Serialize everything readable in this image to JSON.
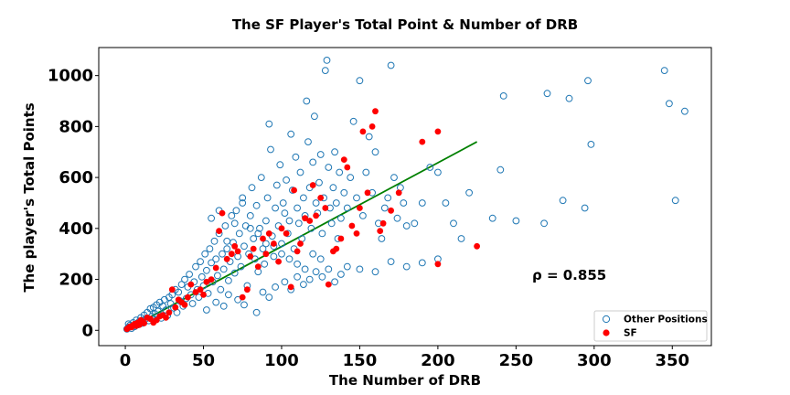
{
  "chart_data": {
    "type": "scatter",
    "title": "The SF Player's Total Point & Number of DRB",
    "xlabel": "The Number of DRB",
    "ylabel": "The player's Total Points",
    "xlim": [
      -17,
      375
    ],
    "ylim": [
      -60,
      1110
    ],
    "xticks": [
      0,
      50,
      100,
      150,
      200,
      250,
      300,
      350
    ],
    "yticks": [
      0,
      200,
      400,
      600,
      800,
      1000
    ],
    "grid": false,
    "legend_position": "lower-right",
    "annotation": "ρ = 0.855",
    "colors": {
      "other": "#1f77b4",
      "sf": "#ff0000",
      "fit": "#008000"
    },
    "series": [
      {
        "name": "Other Positions",
        "marker": "hollow-circle",
        "points": [
          [
            1,
            5
          ],
          [
            2,
            12
          ],
          [
            3,
            20
          ],
          [
            4,
            8
          ],
          [
            5,
            30
          ],
          [
            6,
            15
          ],
          [
            2,
            25
          ],
          [
            7,
            40
          ],
          [
            8,
            22
          ],
          [
            9,
            35
          ],
          [
            10,
            50
          ],
          [
            11,
            28
          ],
          [
            12,
            60
          ],
          [
            13,
            45
          ],
          [
            14,
            70
          ],
          [
            15,
            38
          ],
          [
            16,
            85
          ],
          [
            17,
            55
          ],
          [
            18,
            90
          ],
          [
            19,
            65
          ],
          [
            20,
            100
          ],
          [
            21,
            75
          ],
          [
            22,
            110
          ],
          [
            23,
            48
          ],
          [
            24,
            95
          ],
          [
            25,
            120
          ],
          [
            26,
            80
          ],
          [
            27,
            58
          ],
          [
            28,
            130
          ],
          [
            29,
            105
          ],
          [
            30,
            140
          ],
          [
            31,
            88
          ],
          [
            32,
            160
          ],
          [
            33,
            70
          ],
          [
            34,
            150
          ],
          [
            35,
            115
          ],
          [
            36,
            180
          ],
          [
            37,
            95
          ],
          [
            38,
            200
          ],
          [
            39,
            125
          ],
          [
            40,
            170
          ],
          [
            41,
            220
          ],
          [
            42,
            140
          ],
          [
            43,
            105
          ],
          [
            44,
            190
          ],
          [
            45,
            250
          ],
          [
            46,
            160
          ],
          [
            47,
            130
          ],
          [
            48,
            270
          ],
          [
            49,
            210
          ],
          [
            50,
            175
          ],
          [
            51,
            300
          ],
          [
            52,
            235
          ],
          [
            53,
            145
          ],
          [
            54,
            320
          ],
          [
            55,
            265
          ],
          [
            56,
            190
          ],
          [
            57,
            350
          ],
          [
            58,
            280
          ],
          [
            59,
            215
          ],
          [
            60,
            380
          ],
          [
            61,
            160
          ],
          [
            62,
            300
          ],
          [
            63,
            240
          ],
          [
            64,
            410
          ],
          [
            65,
            320
          ],
          [
            66,
            195
          ],
          [
            67,
            270
          ],
          [
            68,
            450
          ],
          [
            69,
            345
          ],
          [
            70,
            225
          ],
          [
            71,
            470
          ],
          [
            72,
            290
          ],
          [
            73,
            380
          ],
          [
            74,
            250
          ],
          [
            75,
            520
          ],
          [
            76,
            330
          ],
          [
            77,
            410
          ],
          [
            78,
            175
          ],
          [
            79,
            300
          ],
          [
            80,
            450
          ],
          [
            81,
            560
          ],
          [
            82,
            360
          ],
          [
            83,
            280
          ],
          [
            84,
            490
          ],
          [
            85,
            230
          ],
          [
            86,
            400
          ],
          [
            87,
            600
          ],
          [
            88,
            320
          ],
          [
            89,
            260
          ],
          [
            90,
            430
          ],
          [
            91,
            520
          ],
          [
            92,
            810
          ],
          [
            93,
            710
          ],
          [
            94,
            370
          ],
          [
            95,
            290
          ],
          [
            96,
            480
          ],
          [
            97,
            570
          ],
          [
            98,
            410
          ],
          [
            99,
            650
          ],
          [
            100,
            340
          ],
          [
            101,
            500
          ],
          [
            102,
            460
          ],
          [
            103,
            590
          ],
          [
            104,
            380
          ],
          [
            105,
            430
          ],
          [
            106,
            770
          ],
          [
            107,
            550
          ],
          [
            108,
            320
          ],
          [
            109,
            680
          ],
          [
            110,
            480
          ],
          [
            111,
            420
          ],
          [
            112,
            620
          ],
          [
            113,
            360
          ],
          [
            114,
            520
          ],
          [
            115,
            450
          ],
          [
            116,
            900
          ],
          [
            117,
            740
          ],
          [
            118,
            560
          ],
          [
            119,
            400
          ],
          [
            120,
            660
          ],
          [
            121,
            840
          ],
          [
            122,
            500
          ],
          [
            123,
            460
          ],
          [
            124,
            580
          ],
          [
            125,
            690
          ],
          [
            126,
            380
          ],
          [
            127,
            520
          ],
          [
            128,
            1020
          ],
          [
            129,
            1060
          ],
          [
            130,
            640
          ],
          [
            131,
            480
          ],
          [
            132,
            420
          ],
          [
            133,
            560
          ],
          [
            134,
            700
          ],
          [
            135,
            500
          ],
          [
            136,
            360
          ],
          [
            137,
            620
          ],
          [
            138,
            440
          ],
          [
            140,
            540
          ],
          [
            142,
            480
          ],
          [
            144,
            600
          ],
          [
            146,
            820
          ],
          [
            148,
            520
          ],
          [
            150,
            980
          ],
          [
            152,
            450
          ],
          [
            154,
            620
          ],
          [
            156,
            760
          ],
          [
            158,
            540
          ],
          [
            160,
            700
          ],
          [
            162,
            420
          ],
          [
            164,
            360
          ],
          [
            166,
            480
          ],
          [
            168,
            520
          ],
          [
            170,
            1040
          ],
          [
            172,
            600
          ],
          [
            174,
            440
          ],
          [
            176,
            560
          ],
          [
            178,
            500
          ],
          [
            180,
            410
          ],
          [
            185,
            420
          ],
          [
            190,
            500
          ],
          [
            195,
            640
          ],
          [
            200,
            620
          ],
          [
            205,
            500
          ],
          [
            210,
            420
          ],
          [
            215,
            360
          ],
          [
            220,
            540
          ],
          [
            235,
            440
          ],
          [
            240,
            630
          ],
          [
            242,
            920
          ],
          [
            250,
            430
          ],
          [
            268,
            420
          ],
          [
            270,
            930
          ],
          [
            280,
            510
          ],
          [
            284,
            910
          ],
          [
            294,
            480
          ],
          [
            296,
            980
          ],
          [
            298,
            730
          ],
          [
            345,
            1020
          ],
          [
            348,
            890
          ],
          [
            352,
            510
          ],
          [
            358,
            860
          ],
          [
            52,
            80
          ],
          [
            58,
            110
          ],
          [
            63,
            95
          ],
          [
            66,
            140
          ],
          [
            72,
            120
          ],
          [
            76,
            100
          ],
          [
            84,
            70
          ],
          [
            88,
            150
          ],
          [
            92,
            130
          ],
          [
            96,
            170
          ],
          [
            102,
            190
          ],
          [
            106,
            160
          ],
          [
            110,
            210
          ],
          [
            114,
            180
          ],
          [
            118,
            200
          ],
          [
            122,
            230
          ],
          [
            126,
            210
          ],
          [
            130,
            240
          ],
          [
            134,
            190
          ],
          [
            138,
            220
          ],
          [
            142,
            250
          ],
          [
            150,
            240
          ],
          [
            160,
            230
          ],
          [
            170,
            270
          ],
          [
            180,
            250
          ],
          [
            190,
            265
          ],
          [
            200,
            280
          ],
          [
            55,
            440
          ],
          [
            60,
            470
          ],
          [
            65,
            350
          ],
          [
            70,
            420
          ],
          [
            75,
            500
          ],
          [
            80,
            400
          ],
          [
            85,
            380
          ],
          [
            90,
            340
          ],
          [
            95,
            330
          ],
          [
            100,
            300
          ],
          [
            105,
            280
          ],
          [
            110,
            260
          ],
          [
            115,
            240
          ],
          [
            120,
            300
          ],
          [
            125,
            280
          ]
        ]
      },
      {
        "name": "SF",
        "marker": "filled-circle",
        "points": [
          [
            1,
            5
          ],
          [
            2,
            10
          ],
          [
            3,
            15
          ],
          [
            4,
            12
          ],
          [
            5,
            20
          ],
          [
            6,
            25
          ],
          [
            7,
            18
          ],
          [
            8,
            30
          ],
          [
            9,
            22
          ],
          [
            10,
            40
          ],
          [
            11,
            35
          ],
          [
            12,
            28
          ],
          [
            14,
            50
          ],
          [
            16,
            45
          ],
          [
            18,
            30
          ],
          [
            20,
            40
          ],
          [
            22,
            55
          ],
          [
            24,
            60
          ],
          [
            26,
            50
          ],
          [
            28,
            70
          ],
          [
            30,
            160
          ],
          [
            32,
            90
          ],
          [
            34,
            120
          ],
          [
            36,
            110
          ],
          [
            38,
            100
          ],
          [
            40,
            130
          ],
          [
            42,
            180
          ],
          [
            45,
            150
          ],
          [
            48,
            160
          ],
          [
            50,
            140
          ],
          [
            52,
            190
          ],
          [
            55,
            200
          ],
          [
            58,
            245
          ],
          [
            60,
            390
          ],
          [
            62,
            460
          ],
          [
            65,
            280
          ],
          [
            68,
            300
          ],
          [
            70,
            330
          ],
          [
            72,
            310
          ],
          [
            75,
            130
          ],
          [
            78,
            160
          ],
          [
            80,
            290
          ],
          [
            82,
            320
          ],
          [
            85,
            250
          ],
          [
            88,
            360
          ],
          [
            90,
            300
          ],
          [
            92,
            380
          ],
          [
            95,
            340
          ],
          [
            98,
            270
          ],
          [
            100,
            400
          ],
          [
            103,
            380
          ],
          [
            106,
            170
          ],
          [
            108,
            550
          ],
          [
            110,
            310
          ],
          [
            112,
            340
          ],
          [
            115,
            440
          ],
          [
            118,
            430
          ],
          [
            120,
            570
          ],
          [
            122,
            450
          ],
          [
            125,
            520
          ],
          [
            128,
            480
          ],
          [
            130,
            180
          ],
          [
            133,
            310
          ],
          [
            135,
            320
          ],
          [
            138,
            360
          ],
          [
            140,
            670
          ],
          [
            142,
            640
          ],
          [
            145,
            410
          ],
          [
            148,
            380
          ],
          [
            150,
            480
          ],
          [
            152,
            780
          ],
          [
            155,
            540
          ],
          [
            158,
            800
          ],
          [
            160,
            860
          ],
          [
            163,
            390
          ],
          [
            165,
            420
          ],
          [
            170,
            470
          ],
          [
            175,
            540
          ],
          [
            190,
            740
          ],
          [
            200,
            780
          ],
          [
            200,
            260
          ],
          [
            225,
            330
          ]
        ]
      },
      {
        "name": "",
        "marker": "line",
        "points": [
          [
            0,
            0
          ],
          [
            225,
            740
          ]
        ]
      }
    ]
  }
}
